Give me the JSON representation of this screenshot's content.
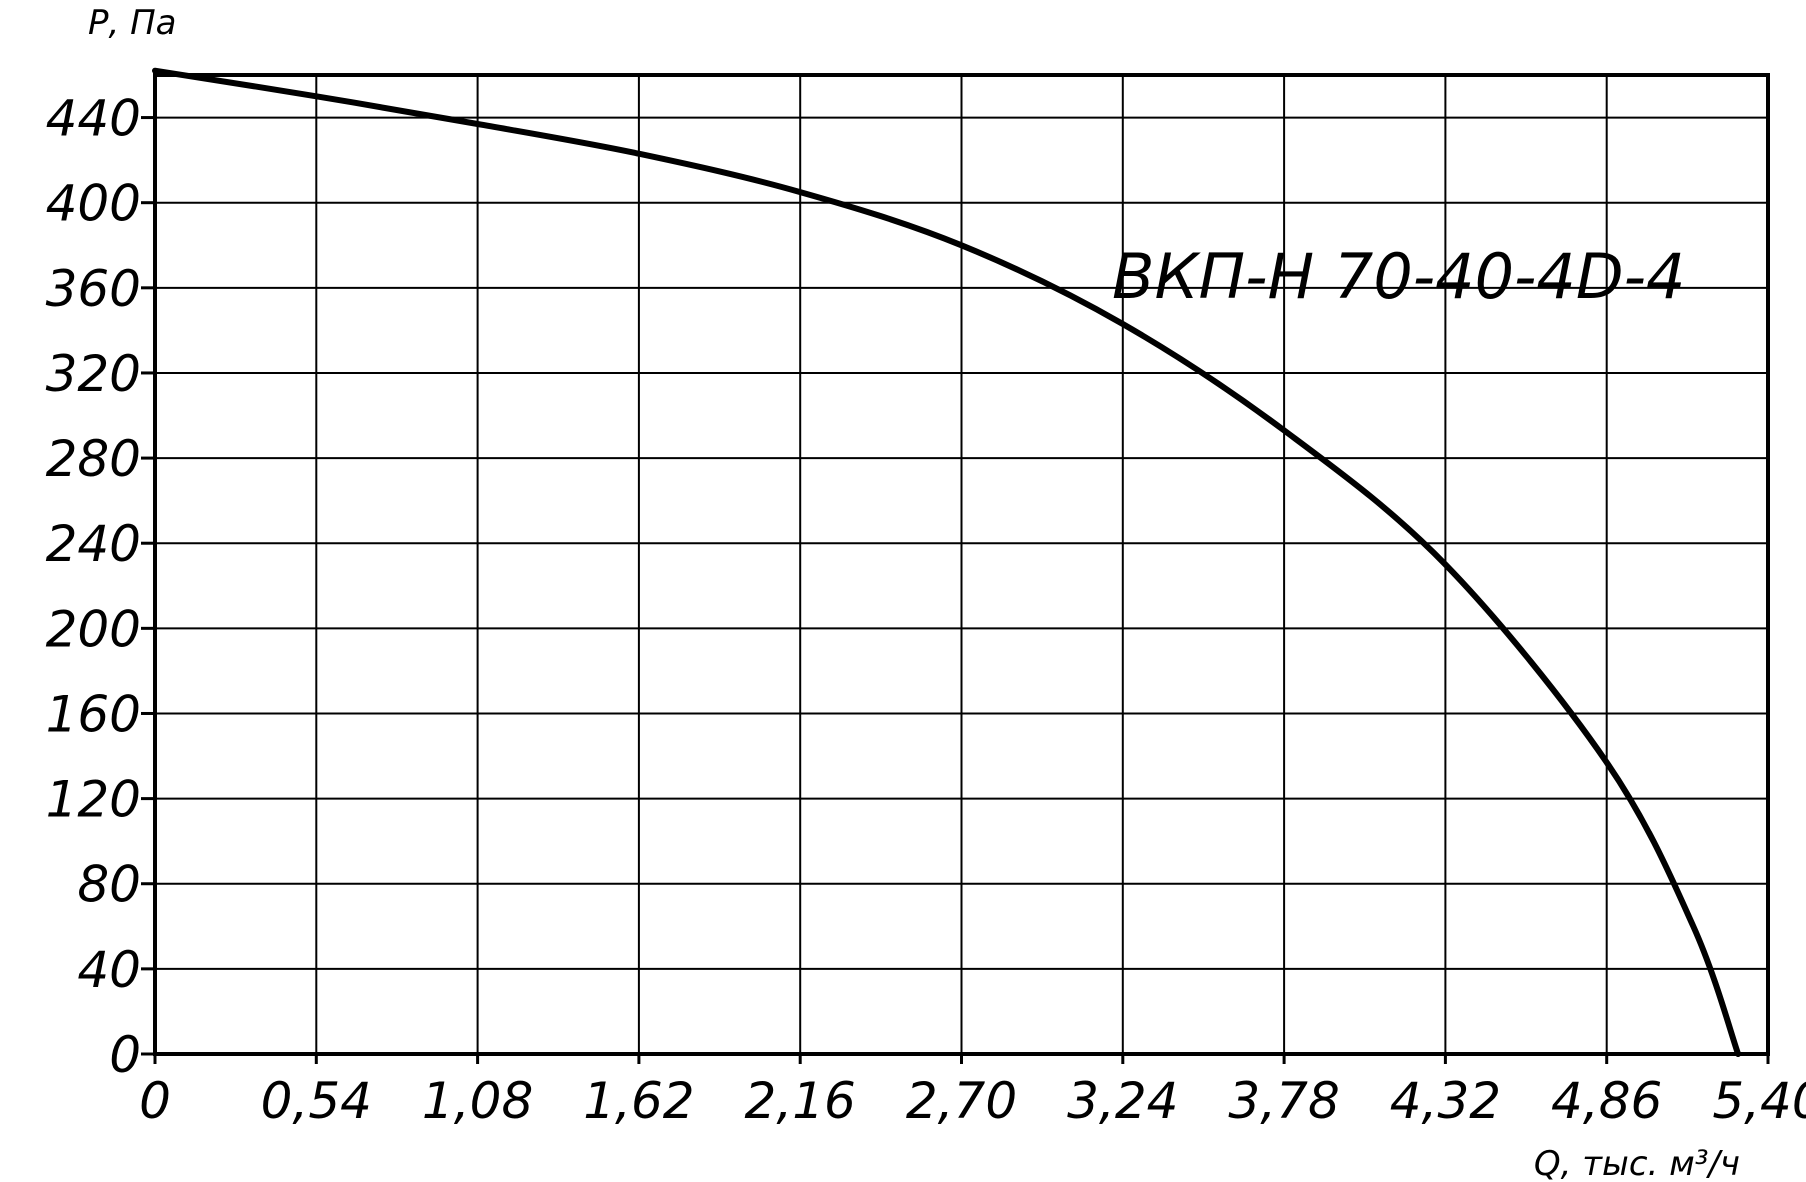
{
  "chart_data": {
    "type": "line",
    "title": "",
    "annotation": "ВКП-Н 70-40-4D-4",
    "ylabel": "Р, Па",
    "xlabel": "Q, тыс. м³/ч",
    "xlim": [
      0,
      5.4
    ],
    "ylim": [
      0,
      460
    ],
    "grid": true,
    "x_ticks": [
      0,
      0.54,
      1.08,
      1.62,
      2.16,
      2.7,
      3.24,
      3.78,
      4.32,
      4.86,
      5.4
    ],
    "x_tick_labels": [
      "0",
      "0,54",
      "1,08",
      "1,62",
      "2,16",
      "2,70",
      "3,24",
      "3,78",
      "4,32",
      "4,86",
      "5,40"
    ],
    "y_ticks": [
      0,
      40,
      80,
      120,
      160,
      200,
      240,
      280,
      320,
      360,
      400,
      440
    ],
    "y_tick_labels": [
      "0",
      "40",
      "80",
      "120",
      "160",
      "200",
      "240",
      "280",
      "320",
      "360",
      "400",
      "440"
    ],
    "series": [
      {
        "x": [
          0,
          0.54,
          1.08,
          1.62,
          2.16,
          2.7,
          3.24,
          3.78,
          4.32,
          4.86,
          5.15,
          5.3
        ],
        "y": [
          462,
          450,
          437,
          423,
          405,
          380,
          343,
          293,
          230,
          137,
          60,
          0
        ]
      }
    ]
  }
}
